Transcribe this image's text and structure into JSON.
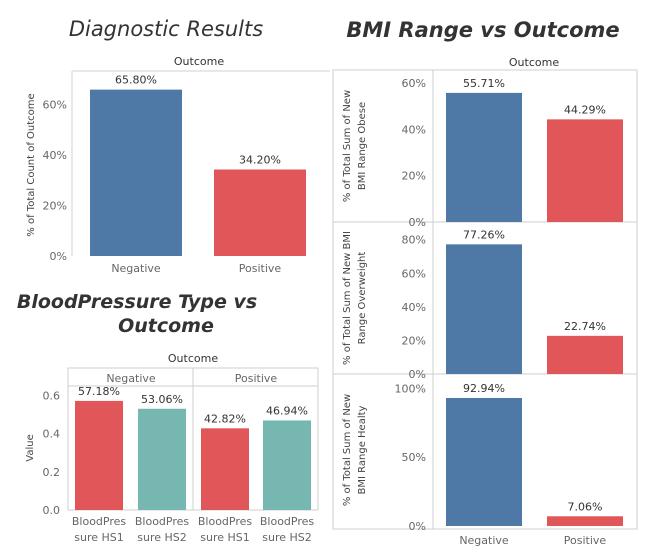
{
  "colors": {
    "blue": "#4e79a7",
    "red": "#e15759",
    "teal": "#76b7b2"
  },
  "chart_data": [
    {
      "id": "diagnostic",
      "type": "bar",
      "title": "Diagnostic Results",
      "header": "Outcome",
      "ylabel": "% of Total Count of Outcome",
      "categories": [
        "Negative",
        "Positive"
      ],
      "values": [
        65.8,
        34.2
      ],
      "data_labels": [
        "65.80%",
        "34.20%"
      ],
      "yticks": [
        "0%",
        "20%",
        "40%",
        "60%"
      ],
      "ylim": [
        0,
        70
      ]
    },
    {
      "id": "bp",
      "type": "bar",
      "title_line1": "BloodPressure Type vs",
      "title_line2": "Outcome",
      "header": "Outcome",
      "ylabel": "Value",
      "groups": [
        "Negative",
        "Positive"
      ],
      "categories": [
        "BloodPressure HS1",
        "BloodPressure HS2"
      ],
      "category_lines": [
        [
          "BloodPres",
          "sure HS1"
        ],
        [
          "BloodPres",
          "sure HS2"
        ]
      ],
      "values": {
        "Negative": [
          0.5718,
          0.5306
        ],
        "Positive": [
          0.4282,
          0.4694
        ]
      },
      "data_labels": {
        "Negative": [
          "57.18%",
          "53.06%"
        ],
        "Positive": [
          "42.82%",
          "46.94%"
        ]
      },
      "yticks": [
        "0.0",
        "0.2",
        "0.4",
        "0.6"
      ],
      "ylim": [
        0,
        0.65
      ]
    },
    {
      "id": "bmi",
      "type": "bar",
      "title": "BMI Range vs Outcome",
      "header": "Outcome",
      "categories": [
        "Negative",
        "Positive"
      ],
      "panels": [
        {
          "ylabel_lines": [
            "% of Total Sum of New",
            "BMI Range Obese"
          ],
          "values": [
            55.71,
            44.29
          ],
          "data_labels": [
            "55.71%",
            "44.29%"
          ],
          "yticks": [
            "0%",
            "20%",
            "40%",
            "60%"
          ],
          "ylim": [
            0,
            63
          ]
        },
        {
          "ylabel_lines": [
            "% of Total Sum of New BMI",
            "Range Overweight"
          ],
          "values": [
            77.26,
            22.74
          ],
          "data_labels": [
            "77.26%",
            "22.74%"
          ],
          "yticks": [
            "0%",
            "20%",
            "40%",
            "60%",
            "80%"
          ],
          "ylim": [
            0,
            87
          ]
        },
        {
          "ylabel_lines": [
            "% of Total Sum of New",
            "BMI Range Healty"
          ],
          "values": [
            92.94,
            7.06
          ],
          "data_labels": [
            "92.94%",
            "7.06%"
          ],
          "yticks": [
            "0%",
            "50%",
            "100%"
          ],
          "ylim": [
            0,
            106
          ]
        }
      ]
    }
  ]
}
